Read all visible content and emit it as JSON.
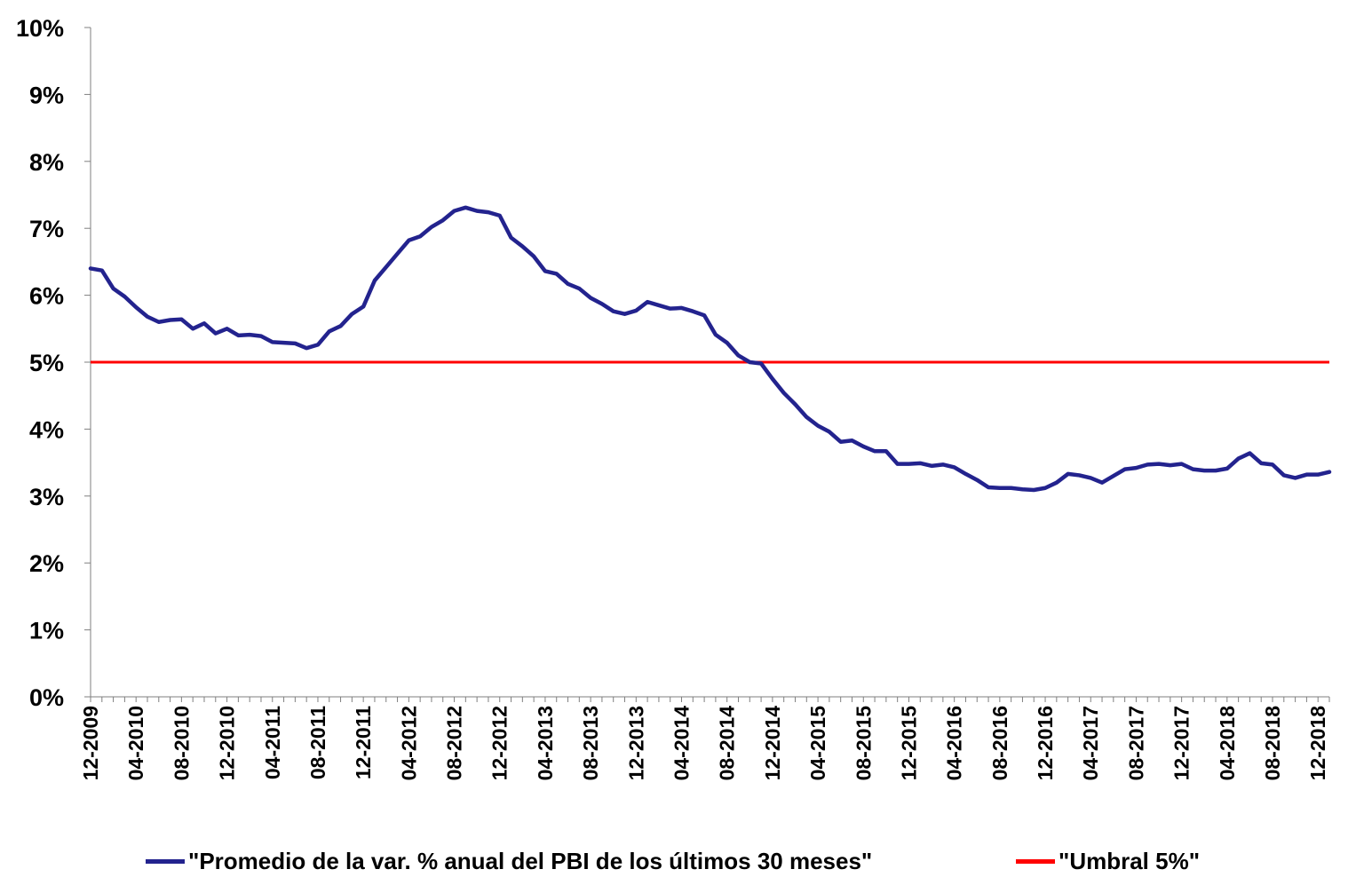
{
  "chart_data": {
    "type": "line",
    "title": "",
    "xlabel": "",
    "ylabel": "",
    "ylim": [
      0,
      10
    ],
    "yticks": [
      "0%",
      "1%",
      "2%",
      "3%",
      "4%",
      "5%",
      "6%",
      "7%",
      "8%",
      "9%",
      "10%"
    ],
    "xtick_labels": [
      "12-2009",
      "04-2010",
      "08-2010",
      "12-2010",
      "04-2011",
      "08-2011",
      "12-2011",
      "04-2012",
      "08-2012",
      "12-2012",
      "04-2013",
      "08-2013",
      "12-2013",
      "04-2014",
      "08-2014",
      "12-2014",
      "04-2015",
      "08-2015",
      "12-2015",
      "04-2016",
      "08-2016",
      "12-2016",
      "04-2017",
      "08-2017",
      "12-2017",
      "04-2018",
      "08-2018",
      "12-2018"
    ],
    "x_start": "12-2009",
    "x_end": "12-2018",
    "legend_position": "bottom",
    "grid": false,
    "series": [
      {
        "name": "\"Promedio de la var. % anual del PBI de los últimos 30 meses\"",
        "color": "#23238e",
        "values": [
          6.4,
          6.37,
          6.1,
          5.98,
          5.82,
          5.68,
          5.6,
          5.63,
          5.64,
          5.5,
          5.58,
          5.43,
          5.5,
          5.4,
          5.41,
          5.39,
          5.3,
          5.29,
          5.28,
          5.21,
          5.26,
          5.46,
          5.54,
          5.72,
          5.83,
          6.22,
          6.42,
          6.62,
          6.82,
          6.88,
          7.02,
          7.12,
          7.26,
          7.31,
          7.26,
          7.24,
          7.19,
          6.86,
          6.73,
          6.58,
          6.36,
          6.32,
          6.17,
          6.1,
          5.96,
          5.87,
          5.76,
          5.72,
          5.77,
          5.9,
          5.85,
          5.8,
          5.81,
          5.76,
          5.7,
          5.41,
          5.29,
          5.1,
          5.0,
          4.98,
          4.75,
          4.54,
          4.37,
          4.18,
          4.05,
          3.96,
          3.81,
          3.83,
          3.74,
          3.67,
          3.67,
          3.48,
          3.48,
          3.49,
          3.45,
          3.47,
          3.43,
          3.33,
          3.24,
          3.13,
          3.12,
          3.12,
          3.1,
          3.09,
          3.12,
          3.2,
          3.33,
          3.31,
          3.27,
          3.2,
          3.3,
          3.4,
          3.42,
          3.47,
          3.48,
          3.46,
          3.48,
          3.4,
          3.38,
          3.38,
          3.41,
          3.56,
          3.64,
          3.49,
          3.47,
          3.31,
          3.27,
          3.32,
          3.32,
          3.36
        ]
      },
      {
        "name": "\"Umbral 5%\"",
        "color": "#ff0000",
        "values": [
          5,
          5
        ]
      }
    ]
  }
}
